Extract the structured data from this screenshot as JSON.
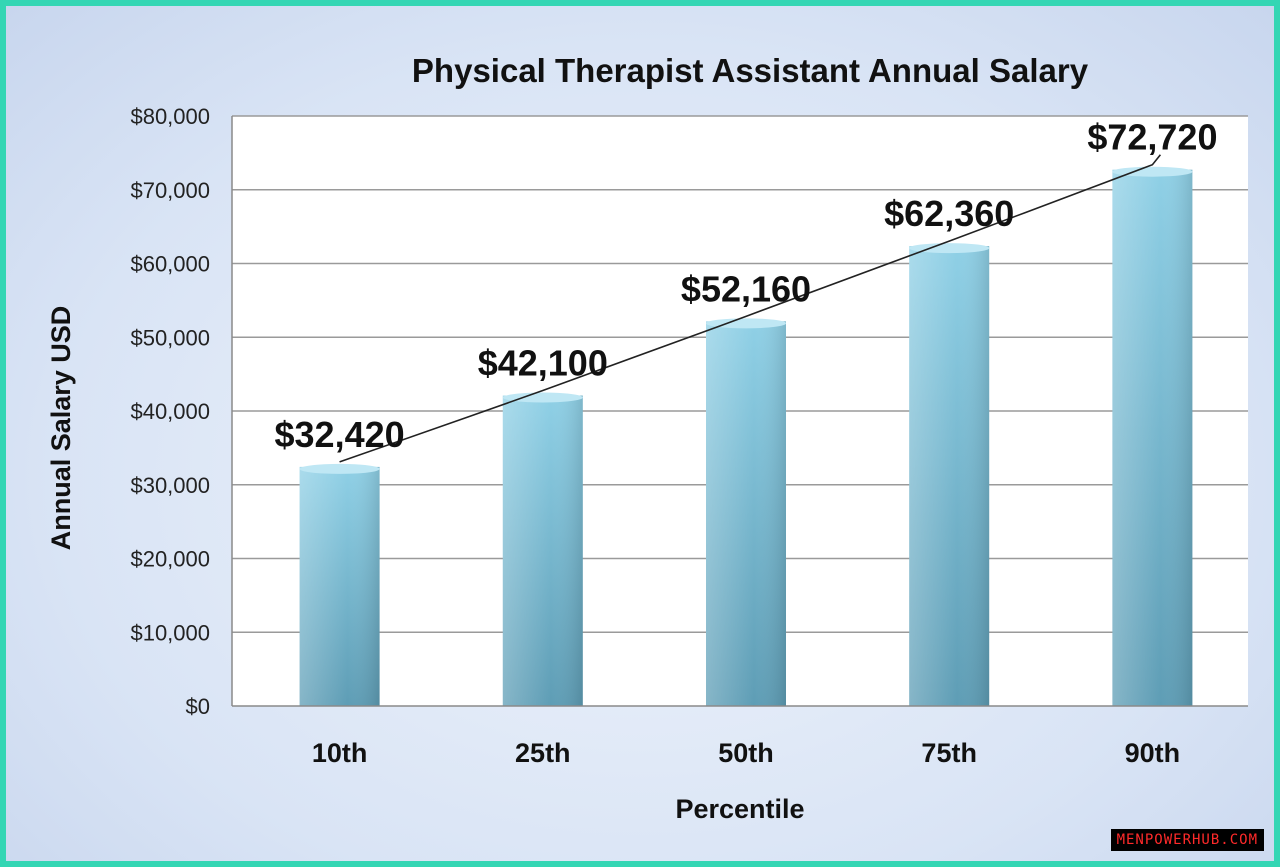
{
  "chart_data": {
    "type": "bar",
    "title": "Physical Therapist Assistant Annual Salary",
    "xlabel": "Percentile",
    "ylabel": "Annual Salary USD",
    "categories": [
      "10th",
      "25th",
      "50th",
      "75th",
      "90th"
    ],
    "values": [
      32420,
      42100,
      52160,
      62360,
      72720
    ],
    "data_labels": [
      "$32,420",
      "$42,100",
      "$52,160",
      "$62,360",
      "$72,720"
    ],
    "ylim": [
      0,
      80000
    ],
    "yticks": [
      0,
      10000,
      20000,
      30000,
      40000,
      50000,
      60000,
      70000,
      80000
    ],
    "ytick_labels": [
      "$0",
      "$10,000",
      "$20,000",
      "$30,000",
      "$40,000",
      "$50,000",
      "$60,000",
      "$70,000",
      "$80,000"
    ],
    "grid": true,
    "trendline": true,
    "bar_color": "#7ec3da"
  },
  "watermark": "MENPOWERHUB.COM"
}
